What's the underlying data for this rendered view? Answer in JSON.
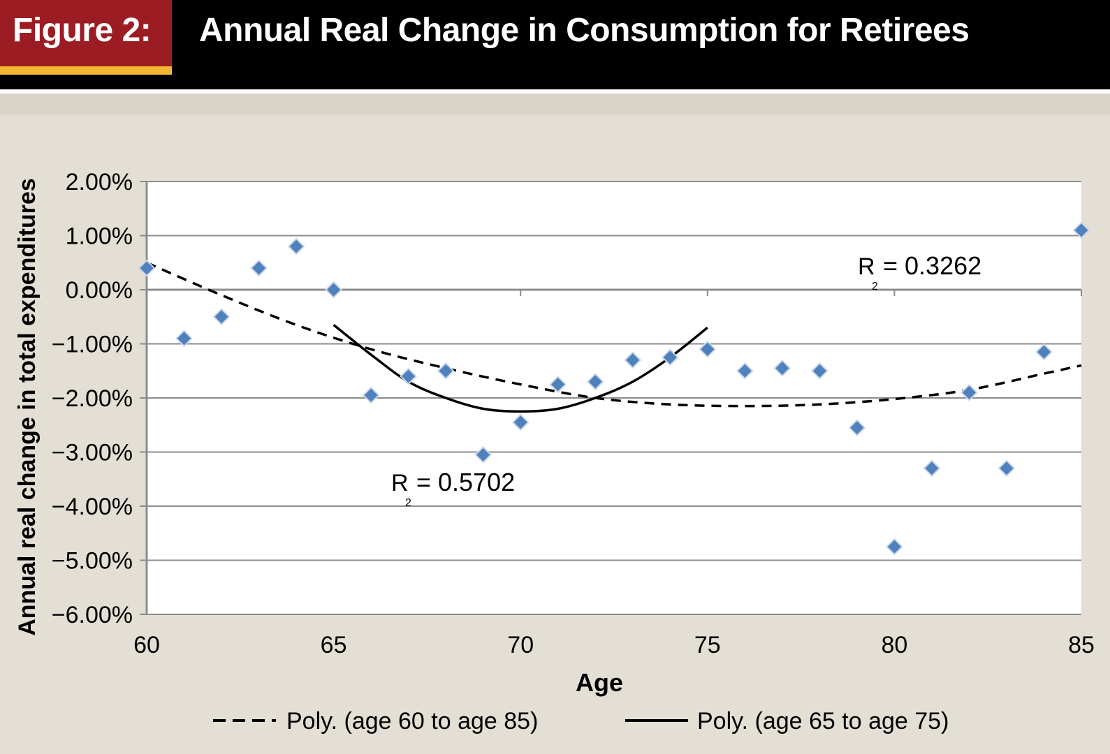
{
  "header": {
    "figure_label": "Figure 2:",
    "title": "Annual Real Change in Consumption for Retirees"
  },
  "colors": {
    "header_bg": "#000000",
    "tag_bg": "#9b1c22",
    "tag_underline": "#f2b632",
    "panel_bg": "#e3dfd5",
    "marker": "#4f81bd"
  },
  "chart_data": {
    "type": "scatter",
    "xlabel": "Age",
    "ylabel": "Annual real change in total expenditures",
    "xlim": [
      60,
      85
    ],
    "ylim": [
      -6,
      2
    ],
    "x_ticks": [
      "60",
      "65",
      "70",
      "75",
      "80",
      "85"
    ],
    "y_ticks": [
      "2.00%",
      "1.00%",
      "0.00%",
      "−1.00%",
      "−2.00%",
      "−3.00%",
      "−4.00%",
      "−5.00%",
      "−6.00%"
    ],
    "grid": true,
    "legend_position": "bottom",
    "points": [
      {
        "x": 60,
        "y": 0.4
      },
      {
        "x": 61,
        "y": -0.9
      },
      {
        "x": 62,
        "y": -0.5
      },
      {
        "x": 63,
        "y": 0.4
      },
      {
        "x": 64,
        "y": 0.8
      },
      {
        "x": 65,
        "y": 0.0
      },
      {
        "x": 66,
        "y": -1.95
      },
      {
        "x": 67,
        "y": -1.6
      },
      {
        "x": 68,
        "y": -1.5
      },
      {
        "x": 69,
        "y": -3.05
      },
      {
        "x": 70,
        "y": -2.45
      },
      {
        "x": 71,
        "y": -1.75
      },
      {
        "x": 72,
        "y": -1.7
      },
      {
        "x": 73,
        "y": -1.3
      },
      {
        "x": 74,
        "y": -1.25
      },
      {
        "x": 75,
        "y": -1.1
      },
      {
        "x": 76,
        "y": -1.5
      },
      {
        "x": 77,
        "y": -1.45
      },
      {
        "x": 78,
        "y": -1.5
      },
      {
        "x": 79,
        "y": -2.55
      },
      {
        "x": 80,
        "y": -4.75
      },
      {
        "x": 81,
        "y": -3.3
      },
      {
        "x": 82,
        "y": -1.9
      },
      {
        "x": 83,
        "y": -3.3
      },
      {
        "x": 84,
        "y": -1.15
      },
      {
        "x": 85,
        "y": 1.1
      }
    ],
    "trendlines": [
      {
        "name": "Poly. (age 60 to age 85)",
        "style": "dashed",
        "x": [
          60,
          62,
          64,
          66,
          68,
          70,
          72,
          74,
          76,
          78,
          80,
          82,
          84,
          85
        ],
        "y": [
          0.5,
          -0.1,
          -0.65,
          -1.1,
          -1.45,
          -1.75,
          -2.0,
          -2.12,
          -2.15,
          -2.12,
          -2.02,
          -1.85,
          -1.55,
          -1.4
        ],
        "r2_label": "R",
        "r2_sub": "2",
        "r2_value": "= 0.3262"
      },
      {
        "name": "Poly. (age 65 to age 75)",
        "style": "solid",
        "x": [
          65,
          66,
          67,
          68,
          69,
          70,
          71,
          72,
          73,
          74,
          75
        ],
        "y": [
          -0.65,
          -1.2,
          -1.7,
          -2.0,
          -2.2,
          -2.25,
          -2.2,
          -2.0,
          -1.7,
          -1.25,
          -0.7
        ],
        "r2_label": "R",
        "r2_sub": "2",
        "r2_value": "= 0.5702"
      }
    ]
  }
}
